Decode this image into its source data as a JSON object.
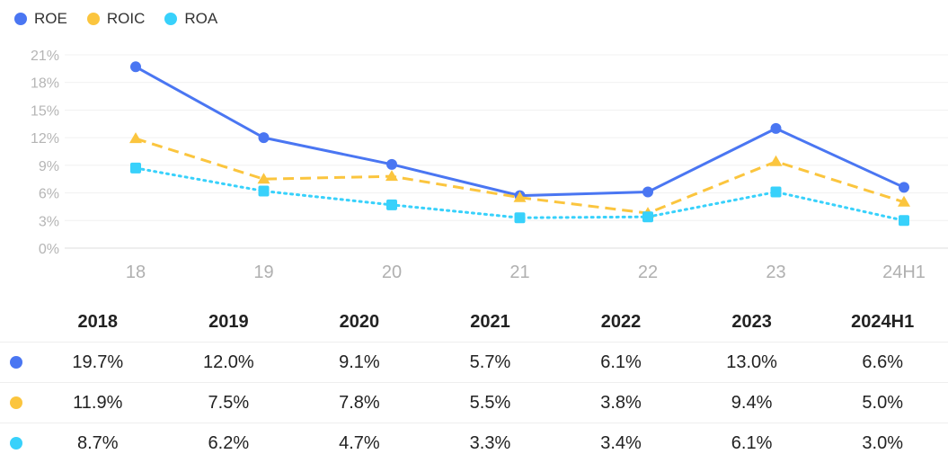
{
  "chart_data": {
    "type": "line",
    "categories": [
      "18",
      "19",
      "20",
      "21",
      "22",
      "23",
      "24H1"
    ],
    "y_ticks": [
      "0%",
      "3%",
      "6%",
      "9%",
      "12%",
      "15%",
      "18%",
      "21%"
    ],
    "ylim": [
      0,
      21
    ],
    "legend_position": "top-left",
    "series": [
      {
        "name": "ROE",
        "color": "#4a76f2",
        "style": "solid",
        "marker": "circle",
        "values": [
          19.7,
          12.0,
          9.1,
          5.7,
          6.1,
          13.0,
          6.6
        ]
      },
      {
        "name": "ROIC",
        "color": "#fbc53e",
        "style": "dashed",
        "marker": "triangle",
        "values": [
          11.9,
          7.5,
          7.8,
          5.5,
          3.8,
          9.4,
          5.0
        ]
      },
      {
        "name": "ROA",
        "color": "#38d1fb",
        "style": "dotted",
        "marker": "square",
        "values": [
          8.7,
          6.2,
          4.7,
          3.3,
          3.4,
          6.1,
          3.0
        ]
      }
    ]
  },
  "table": {
    "headers": [
      "2018",
      "2019",
      "2020",
      "2021",
      "2022",
      "2023",
      "2024H1"
    ],
    "rows": [
      {
        "color": "#4a76f2",
        "cells": [
          "19.7%",
          "12.0%",
          "9.1%",
          "5.7%",
          "6.1%",
          "13.0%",
          "6.6%"
        ]
      },
      {
        "color": "#fbc53e",
        "cells": [
          "11.9%",
          "7.5%",
          "7.8%",
          "5.5%",
          "3.8%",
          "9.4%",
          "5.0%"
        ]
      },
      {
        "color": "#38d1fb",
        "cells": [
          "8.7%",
          "6.2%",
          "4.7%",
          "3.3%",
          "3.4%",
          "6.1%",
          "3.0%"
        ]
      }
    ]
  }
}
